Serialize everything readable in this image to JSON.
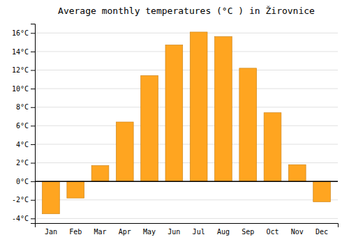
{
  "chart_data": {
    "type": "bar",
    "title": "Average monthly temperatures (°C ) in Žirovnice",
    "categories": [
      "Jan",
      "Feb",
      "Mar",
      "Apr",
      "May",
      "Jun",
      "Jul",
      "Aug",
      "Sep",
      "Oct",
      "Nov",
      "Dec"
    ],
    "values": [
      -3.5,
      -1.8,
      1.7,
      6.4,
      11.4,
      14.7,
      16.1,
      15.6,
      12.2,
      7.4,
      1.8,
      -2.2
    ],
    "color": "#FFA520",
    "ylim": [
      -4.5,
      17.0
    ],
    "yticks": [
      {
        "value": -4,
        "label": "-4°C"
      },
      {
        "value": -2,
        "label": "-2°C"
      },
      {
        "value": 0,
        "label": "0°C"
      },
      {
        "value": 2,
        "label": "2°C"
      },
      {
        "value": 4,
        "label": "4°C"
      },
      {
        "value": 6,
        "label": "6°C"
      },
      {
        "value": 8,
        "label": "8°C"
      },
      {
        "value": 10,
        "label": "10°C"
      },
      {
        "value": 12,
        "label": "12°C"
      },
      {
        "value": 14,
        "label": "14°C"
      },
      {
        "value": 16,
        "label": "16°C"
      }
    ],
    "grid": true
  }
}
